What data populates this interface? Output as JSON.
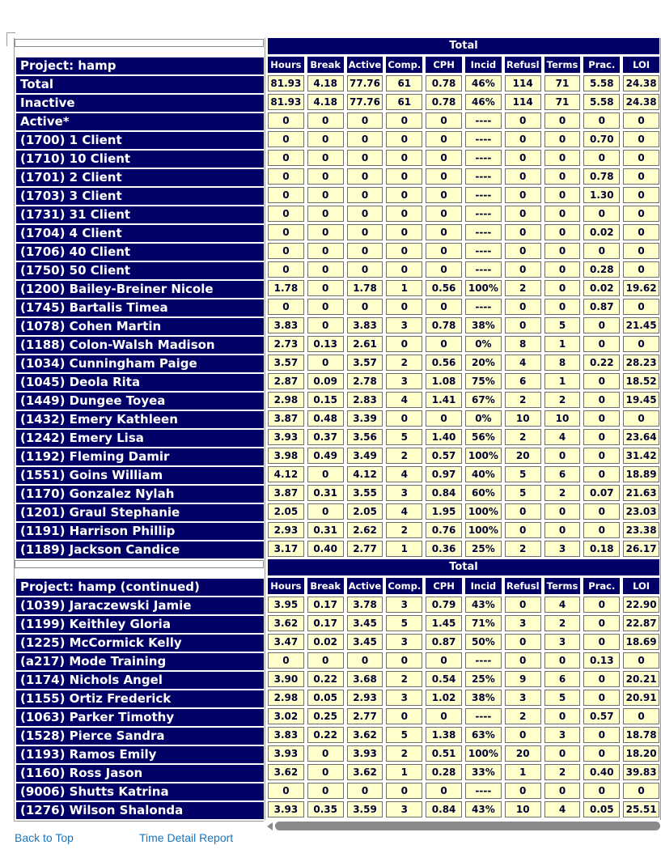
{
  "table_title": "Total",
  "columns": [
    "Hours",
    "Break",
    "Active",
    "Comp.",
    "CPH",
    "Incid",
    "Refusl",
    "Terms",
    "Prac.",
    "LOI"
  ],
  "section1": {
    "header": "Project: hamp",
    "rows": [
      {
        "label": "Total",
        "values": [
          "81.93",
          "4.18",
          "77.76",
          "61",
          "0.78",
          "46%",
          "114",
          "71",
          "5.58",
          "24.38"
        ]
      },
      {
        "label": "Inactive",
        "values": [
          "81.93",
          "4.18",
          "77.76",
          "61",
          "0.78",
          "46%",
          "114",
          "71",
          "5.58",
          "24.38"
        ]
      },
      {
        "label": "Active*",
        "values": [
          "0",
          "0",
          "0",
          "0",
          "0",
          "----",
          "0",
          "0",
          "0",
          "0"
        ]
      },
      {
        "label": "(1700) 1 Client",
        "values": [
          "0",
          "0",
          "0",
          "0",
          "0",
          "----",
          "0",
          "0",
          "0.70",
          "0"
        ]
      },
      {
        "label": "(1710) 10 Client",
        "values": [
          "0",
          "0",
          "0",
          "0",
          "0",
          "----",
          "0",
          "0",
          "0",
          "0"
        ]
      },
      {
        "label": "(1701) 2 Client",
        "values": [
          "0",
          "0",
          "0",
          "0",
          "0",
          "----",
          "0",
          "0",
          "0.78",
          "0"
        ]
      },
      {
        "label": "(1703) 3 Client",
        "values": [
          "0",
          "0",
          "0",
          "0",
          "0",
          "----",
          "0",
          "0",
          "1.30",
          "0"
        ]
      },
      {
        "label": "(1731) 31 Client",
        "values": [
          "0",
          "0",
          "0",
          "0",
          "0",
          "----",
          "0",
          "0",
          "0",
          "0"
        ]
      },
      {
        "label": "(1704) 4 Client",
        "values": [
          "0",
          "0",
          "0",
          "0",
          "0",
          "----",
          "0",
          "0",
          "0.02",
          "0"
        ]
      },
      {
        "label": "(1706) 40 Client",
        "values": [
          "0",
          "0",
          "0",
          "0",
          "0",
          "----",
          "0",
          "0",
          "0",
          "0"
        ]
      },
      {
        "label": "(1750) 50 Client",
        "values": [
          "0",
          "0",
          "0",
          "0",
          "0",
          "----",
          "0",
          "0",
          "0.28",
          "0"
        ]
      },
      {
        "label": "(1200) Bailey-Breiner Nicole",
        "values": [
          "1.78",
          "0",
          "1.78",
          "1",
          "0.56",
          "100%",
          "2",
          "0",
          "0.02",
          "19.62"
        ]
      },
      {
        "label": "(1745) Bartalis Timea",
        "values": [
          "0",
          "0",
          "0",
          "0",
          "0",
          "----",
          "0",
          "0",
          "0.87",
          "0"
        ]
      },
      {
        "label": "(1078) Cohen Martin",
        "values": [
          "3.83",
          "0",
          "3.83",
          "3",
          "0.78",
          "38%",
          "0",
          "5",
          "0",
          "21.45"
        ]
      },
      {
        "label": "(1188) Colon-Walsh Madison",
        "values": [
          "2.73",
          "0.13",
          "2.61",
          "0",
          "0",
          "0%",
          "8",
          "1",
          "0",
          "0"
        ]
      },
      {
        "label": "(1034) Cunningham Paige",
        "values": [
          "3.57",
          "0",
          "3.57",
          "2",
          "0.56",
          "20%",
          "4",
          "8",
          "0.22",
          "28.23"
        ]
      },
      {
        "label": "(1045) Deola Rita",
        "values": [
          "2.87",
          "0.09",
          "2.78",
          "3",
          "1.08",
          "75%",
          "6",
          "1",
          "0",
          "18.52"
        ]
      },
      {
        "label": "(1449) Dungee Toyea",
        "values": [
          "2.98",
          "0.15",
          "2.83",
          "4",
          "1.41",
          "67%",
          "2",
          "2",
          "0",
          "19.45"
        ]
      },
      {
        "label": "(1432) Emery Kathleen",
        "values": [
          "3.87",
          "0.48",
          "3.39",
          "0",
          "0",
          "0%",
          "10",
          "10",
          "0",
          "0"
        ]
      },
      {
        "label": "(1242) Emery Lisa",
        "values": [
          "3.93",
          "0.37",
          "3.56",
          "5",
          "1.40",
          "56%",
          "2",
          "4",
          "0",
          "23.64"
        ]
      },
      {
        "label": "(1192) Fleming Damir",
        "values": [
          "3.98",
          "0.49",
          "3.49",
          "2",
          "0.57",
          "100%",
          "20",
          "0",
          "0",
          "31.42"
        ]
      },
      {
        "label": "(1551) Goins William",
        "values": [
          "4.12",
          "0",
          "4.12",
          "4",
          "0.97",
          "40%",
          "5",
          "6",
          "0",
          "18.89"
        ]
      },
      {
        "label": "(1170) Gonzalez Nylah",
        "values": [
          "3.87",
          "0.31",
          "3.55",
          "3",
          "0.84",
          "60%",
          "5",
          "2",
          "0.07",
          "21.63"
        ]
      },
      {
        "label": "(1201) Graul Stephanie",
        "values": [
          "2.05",
          "0",
          "2.05",
          "4",
          "1.95",
          "100%",
          "0",
          "0",
          "0",
          "23.03"
        ]
      },
      {
        "label": "(1191) Harrison Phillip",
        "values": [
          "2.93",
          "0.31",
          "2.62",
          "2",
          "0.76",
          "100%",
          "0",
          "0",
          "0",
          "23.38"
        ]
      },
      {
        "label": "(1189) Jackson Candice",
        "values": [
          "3.17",
          "0.40",
          "2.77",
          "1",
          "0.36",
          "25%",
          "2",
          "3",
          "0.18",
          "26.17"
        ]
      }
    ]
  },
  "section2": {
    "header": "Project: hamp (continued)",
    "rows": [
      {
        "label": "(1039) Jaraczewski Jamie",
        "values": [
          "3.95",
          "0.17",
          "3.78",
          "3",
          "0.79",
          "43%",
          "0",
          "4",
          "0",
          "22.90"
        ]
      },
      {
        "label": "(1199) Keithley Gloria",
        "values": [
          "3.62",
          "0.17",
          "3.45",
          "5",
          "1.45",
          "71%",
          "3",
          "2",
          "0",
          "22.87"
        ]
      },
      {
        "label": "(1225) McCormick Kelly",
        "values": [
          "3.47",
          "0.02",
          "3.45",
          "3",
          "0.87",
          "50%",
          "0",
          "3",
          "0",
          "18.69"
        ]
      },
      {
        "label": "(a217) Mode Training",
        "values": [
          "0",
          "0",
          "0",
          "0",
          "0",
          "----",
          "0",
          "0",
          "0.13",
          "0"
        ]
      },
      {
        "label": "(1174) Nichols Angel",
        "values": [
          "3.90",
          "0.22",
          "3.68",
          "2",
          "0.54",
          "25%",
          "9",
          "6",
          "0",
          "20.21"
        ]
      },
      {
        "label": "(1155) Ortiz Frederick",
        "values": [
          "2.98",
          "0.05",
          "2.93",
          "3",
          "1.02",
          "38%",
          "3",
          "5",
          "0",
          "20.91"
        ]
      },
      {
        "label": "(1063) Parker Timothy",
        "values": [
          "3.02",
          "0.25",
          "2.77",
          "0",
          "0",
          "----",
          "2",
          "0",
          "0.57",
          "0"
        ]
      },
      {
        "label": "(1528) Pierce Sandra",
        "values": [
          "3.83",
          "0.22",
          "3.62",
          "5",
          "1.38",
          "63%",
          "0",
          "3",
          "0",
          "18.78"
        ]
      },
      {
        "label": "(1193) Ramos Emily",
        "values": [
          "3.93",
          "0",
          "3.93",
          "2",
          "0.51",
          "100%",
          "20",
          "0",
          "0",
          "18.20"
        ]
      },
      {
        "label": "(1160) Ross Jason",
        "values": [
          "3.62",
          "0",
          "3.62",
          "1",
          "0.28",
          "33%",
          "1",
          "2",
          "0.40",
          "39.83"
        ]
      },
      {
        "label": "(9006) Shutts Katrina",
        "values": [
          "0",
          "0",
          "0",
          "0",
          "0",
          "----",
          "0",
          "0",
          "0",
          "0"
        ]
      },
      {
        "label": "(1276) Wilson Shalonda",
        "values": [
          "3.93",
          "0.35",
          "3.59",
          "3",
          "0.84",
          "43%",
          "10",
          "4",
          "0.05",
          "25.51"
        ]
      }
    ]
  },
  "footer": {
    "back_to_top": "Back to Top",
    "time_detail_report": "Time Detail Report"
  },
  "colors": {
    "navy_header": "#000066",
    "cell_background": "#FFFFCC",
    "cell_border": "#6E6E6E",
    "cell_text": "#000033",
    "link": "#1B74B9",
    "frame_line": "#9A9A9A",
    "scrollbar": "#8A8A8A"
  }
}
